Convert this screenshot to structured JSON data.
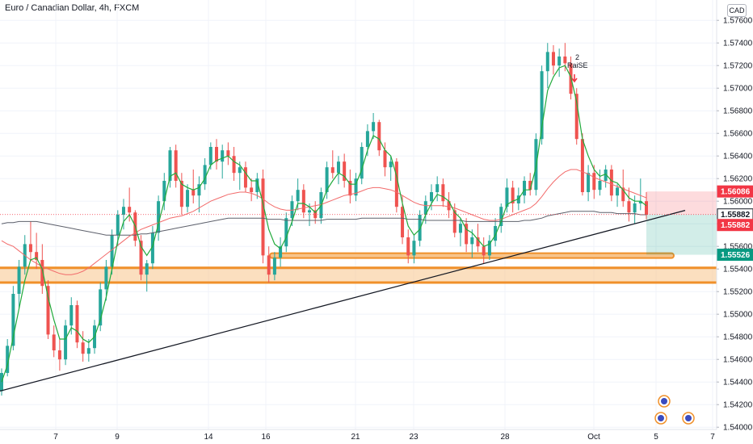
{
  "header": {
    "title": "Euro / Canadian Dollar, 4h, FXCM",
    "currency": "CAD"
  },
  "chart_data": {
    "type": "candlestick",
    "ylim": [
      1.5398,
      1.5778
    ],
    "y_ticks": [
      "1.54000",
      "1.54200",
      "1.54400",
      "1.54600",
      "1.54800",
      "1.55000",
      "1.55200",
      "1.55400",
      "1.55600",
      "1.55800",
      "1.56000",
      "1.56200",
      "1.56400",
      "1.56600",
      "1.56800",
      "1.57000",
      "1.57200",
      "1.57400",
      "1.57600"
    ],
    "x_ticks": [
      "7",
      "9",
      "14",
      "16",
      "21",
      "23",
      "28",
      "Oct",
      "5",
      "7"
    ],
    "price_labels": [
      {
        "value": "1.56086",
        "price": 1.56086,
        "color": "#f23645"
      },
      {
        "value": "1.55882",
        "price": 1.55882,
        "color": "#ffffff"
      },
      {
        "value": "1.55882",
        "price": 1.55882,
        "color": "#f23645"
      },
      {
        "value": "1.55526",
        "price": 1.55526,
        "color": "#089981"
      }
    ],
    "annotation": {
      "text_top": "2",
      "text_bottom": "RaiSE"
    },
    "colors": {
      "up": "#26a69a",
      "down": "#ef5350",
      "zone": "#f7c48b",
      "zone_edge": "#f0902a",
      "trend": "#131722",
      "ma_green": "#22ab3c",
      "ma_red": "#f26b6b",
      "ma_gray": "#5d606b"
    },
    "candles": [
      [
        1.5432,
        1.5452,
        1.5428,
        1.5448
      ],
      [
        1.5448,
        1.5478,
        1.5445,
        1.5472
      ],
      [
        1.5472,
        1.5525,
        1.5468,
        1.5518
      ],
      [
        1.5518,
        1.5548,
        1.5505,
        1.5542
      ],
      [
        1.5542,
        1.557,
        1.5535,
        1.5562
      ],
      [
        1.5562,
        1.5582,
        1.5548,
        1.5555
      ],
      [
        1.5555,
        1.5572,
        1.554,
        1.5548
      ],
      [
        1.5548,
        1.5562,
        1.5518,
        1.5525
      ],
      [
        1.5525,
        1.553,
        1.5478,
        1.5482
      ],
      [
        1.5482,
        1.549,
        1.5462,
        1.5468
      ],
      [
        1.5468,
        1.5478,
        1.545,
        1.546
      ],
      [
        1.546,
        1.5495,
        1.5455,
        1.549
      ],
      [
        1.549,
        1.5515,
        1.5482,
        1.5508
      ],
      [
        1.5508,
        1.5512,
        1.547,
        1.5475
      ],
      [
        1.5475,
        1.5485,
        1.5458,
        1.5465
      ],
      [
        1.5465,
        1.5478,
        1.5458,
        1.547
      ],
      [
        1.547,
        1.5495,
        1.5465,
        1.549
      ],
      [
        1.549,
        1.5528,
        1.5485,
        1.5522
      ],
      [
        1.5522,
        1.5548,
        1.5512,
        1.5542
      ],
      [
        1.5542,
        1.5575,
        1.5535,
        1.557
      ],
      [
        1.557,
        1.5592,
        1.556,
        1.5588
      ],
      [
        1.5588,
        1.5602,
        1.5575,
        1.5595
      ],
      [
        1.5595,
        1.5612,
        1.5582,
        1.559
      ],
      [
        1.559,
        1.5592,
        1.556,
        1.5565
      ],
      [
        1.5565,
        1.557,
        1.553,
        1.5535
      ],
      [
        1.5535,
        1.5548,
        1.552,
        1.5545
      ],
      [
        1.5545,
        1.5578,
        1.554,
        1.5572
      ],
      [
        1.5572,
        1.5605,
        1.5565,
        1.56
      ],
      [
        1.56,
        1.5625,
        1.5592,
        1.5618
      ],
      [
        1.5618,
        1.5648,
        1.5612,
        1.5645
      ],
      [
        1.5645,
        1.565,
        1.5612,
        1.5618
      ],
      [
        1.5618,
        1.5625,
        1.5588,
        1.5595
      ],
      [
        1.5595,
        1.5615,
        1.559,
        1.561
      ],
      [
        1.561,
        1.5628,
        1.5598,
        1.5605
      ],
      [
        1.5605,
        1.5622,
        1.559,
        1.5615
      ],
      [
        1.5615,
        1.5638,
        1.561,
        1.5632
      ],
      [
        1.5632,
        1.5652,
        1.5628,
        1.5648
      ],
      [
        1.5648,
        1.5655,
        1.5628,
        1.5635
      ],
      [
        1.5635,
        1.565,
        1.562,
        1.5645
      ],
      [
        1.5645,
        1.5652,
        1.5632,
        1.564
      ],
      [
        1.564,
        1.5648,
        1.5618,
        1.5625
      ],
      [
        1.5625,
        1.5635,
        1.561,
        1.563
      ],
      [
        1.563,
        1.5635,
        1.5608,
        1.5612
      ],
      [
        1.5612,
        1.562,
        1.56,
        1.5608
      ],
      [
        1.5608,
        1.5625,
        1.5602,
        1.562
      ],
      [
        1.562,
        1.5628,
        1.5545,
        1.5552
      ],
      [
        1.5552,
        1.556,
        1.5528,
        1.5535
      ],
      [
        1.5535,
        1.5555,
        1.553,
        1.555
      ],
      [
        1.555,
        1.5568,
        1.5542,
        1.556
      ],
      [
        1.556,
        1.559,
        1.5555,
        1.5585
      ],
      [
        1.5585,
        1.5605,
        1.5578,
        1.56
      ],
      [
        1.56,
        1.562,
        1.5592,
        1.561
      ],
      [
        1.561,
        1.5615,
        1.5585,
        1.559
      ],
      [
        1.559,
        1.5598,
        1.5578,
        1.5592
      ],
      [
        1.5592,
        1.56,
        1.558,
        1.5585
      ],
      [
        1.5585,
        1.5612,
        1.558,
        1.5608
      ],
      [
        1.5608,
        1.5635,
        1.5602,
        1.563
      ],
      [
        1.563,
        1.5645,
        1.562,
        1.5625
      ],
      [
        1.5625,
        1.564,
        1.5615,
        1.5635
      ],
      [
        1.5635,
        1.5642,
        1.5612,
        1.5618
      ],
      [
        1.5618,
        1.5628,
        1.5598,
        1.5605
      ],
      [
        1.5605,
        1.5625,
        1.56,
        1.562
      ],
      [
        1.562,
        1.5652,
        1.5615,
        1.5648
      ],
      [
        1.5648,
        1.5668,
        1.564,
        1.5662
      ],
      [
        1.5662,
        1.5678,
        1.5655,
        1.567
      ],
      [
        1.567,
        1.5672,
        1.564,
        1.5645
      ],
      [
        1.5645,
        1.5652,
        1.5622,
        1.563
      ],
      [
        1.563,
        1.564,
        1.5618,
        1.5635
      ],
      [
        1.5635,
        1.5638,
        1.559,
        1.5595
      ],
      [
        1.5595,
        1.5605,
        1.5562,
        1.5568
      ],
      [
        1.5568,
        1.5575,
        1.5545,
        1.5552
      ],
      [
        1.5552,
        1.557,
        1.5545,
        1.5565
      ],
      [
        1.5565,
        1.5592,
        1.556,
        1.5588
      ],
      [
        1.5588,
        1.5605,
        1.558,
        1.56
      ],
      [
        1.56,
        1.5615,
        1.5592,
        1.5608
      ],
      [
        1.5608,
        1.5622,
        1.56,
        1.5615
      ],
      [
        1.5615,
        1.562,
        1.5595,
        1.56
      ],
      [
        1.56,
        1.5608,
        1.5585,
        1.5592
      ],
      [
        1.5592,
        1.5598,
        1.5568,
        1.5572
      ],
      [
        1.5572,
        1.5585,
        1.556,
        1.558
      ],
      [
        1.558,
        1.5585,
        1.5555,
        1.5562
      ],
      [
        1.5562,
        1.5575,
        1.555,
        1.5568
      ],
      [
        1.5568,
        1.558,
        1.5555,
        1.556
      ],
      [
        1.556,
        1.5568,
        1.5545,
        1.5552
      ],
      [
        1.5552,
        1.557,
        1.5548,
        1.5565
      ],
      [
        1.5565,
        1.5585,
        1.556,
        1.5578
      ],
      [
        1.5578,
        1.5598,
        1.5572,
        1.5595
      ],
      [
        1.5595,
        1.562,
        1.559,
        1.5612
      ],
      [
        1.5612,
        1.5618,
        1.559,
        1.5598
      ],
      [
        1.5598,
        1.5612,
        1.5592,
        1.5605
      ],
      [
        1.5605,
        1.5622,
        1.5598,
        1.5618
      ],
      [
        1.5618,
        1.5625,
        1.5605,
        1.561
      ],
      [
        1.561,
        1.566,
        1.5605,
        1.5655
      ],
      [
        1.5655,
        1.572,
        1.565,
        1.5715
      ],
      [
        1.5715,
        1.574,
        1.57,
        1.5732
      ],
      [
        1.5732,
        1.5738,
        1.5712,
        1.572
      ],
      [
        1.572,
        1.5735,
        1.571,
        1.5728
      ],
      [
        1.5728,
        1.574,
        1.5715,
        1.5722
      ],
      [
        1.5722,
        1.5728,
        1.569,
        1.5695
      ],
      [
        1.5695,
        1.57,
        1.565,
        1.5655
      ],
      [
        1.5655,
        1.566,
        1.5605,
        1.5608
      ],
      [
        1.5608,
        1.5632,
        1.56,
        1.5625
      ],
      [
        1.5625,
        1.5632,
        1.5602,
        1.561
      ],
      [
        1.561,
        1.5628,
        1.5605,
        1.5618
      ],
      [
        1.5618,
        1.5632,
        1.5612,
        1.5628
      ],
      [
        1.5628,
        1.5632,
        1.56,
        1.5605
      ],
      [
        1.5605,
        1.5615,
        1.5595,
        1.5612
      ],
      [
        1.5612,
        1.5628,
        1.5595,
        1.56
      ],
      [
        1.56,
        1.5612,
        1.5582,
        1.559
      ],
      [
        1.559,
        1.5605,
        1.558,
        1.5598
      ],
      [
        1.5598,
        1.562,
        1.5592,
        1.56
      ],
      [
        1.56,
        1.5608,
        1.5584,
        1.5588
      ]
    ],
    "ma_fast": [
      1.544,
      1.5455,
      1.548,
      1.5505,
      1.553,
      1.5548,
      1.555,
      1.554,
      1.5515,
      1.5495,
      1.5478,
      1.5478,
      1.5488,
      1.5485,
      1.5478,
      1.5475,
      1.548,
      1.5495,
      1.5515,
      1.554,
      1.5565,
      1.5582,
      1.5588,
      1.5578,
      1.556,
      1.5552,
      1.556,
      1.558,
      1.56,
      1.5622,
      1.5625,
      1.5615,
      1.5612,
      1.561,
      1.5612,
      1.562,
      1.5632,
      1.5636,
      1.5638,
      1.564,
      1.5635,
      1.5632,
      1.5625,
      1.5618,
      1.5618,
      1.5598,
      1.5575,
      1.5562,
      1.5558,
      1.5568,
      1.5582,
      1.5598,
      1.5598,
      1.5595,
      1.559,
      1.5596,
      1.561,
      1.5618,
      1.5625,
      1.5622,
      1.5615,
      1.5615,
      1.5628,
      1.5645,
      1.5658,
      1.5655,
      1.5645,
      1.564,
      1.5622,
      1.5598,
      1.5578,
      1.557,
      1.5575,
      1.5588,
      1.5598,
      1.5606,
      1.5604,
      1.56,
      1.559,
      1.5585,
      1.5575,
      1.5572,
      1.5566,
      1.556,
      1.5562,
      1.557,
      1.5582,
      1.5597,
      1.56,
      1.5602,
      1.561,
      1.561,
      1.563,
      1.5665,
      1.5698,
      1.571,
      1.5718,
      1.572,
      1.571,
      1.5688,
      1.5655,
      1.564,
      1.5628,
      1.5622,
      1.5624,
      1.5618,
      1.5616,
      1.561,
      1.5603,
      1.56,
      1.56,
      1.5596
    ],
    "ma_slow": [
      1.5565,
      1.5562,
      1.556,
      1.5556,
      1.5552,
      1.5548,
      1.5545,
      1.5542,
      1.554,
      1.5538,
      1.5536,
      1.5535,
      1.5535,
      1.5536,
      1.5538,
      1.5541,
      1.5545,
      1.5549,
      1.5553,
      1.5557,
      1.5561,
      1.5565,
      1.5569,
      1.5572,
      1.5575,
      1.5577,
      1.5579,
      1.5581,
      1.5583,
      1.5585,
      1.5586,
      1.5587,
      1.5589,
      1.5591,
      1.5594,
      1.5597,
      1.56,
      1.5602,
      1.5604,
      1.5606,
      1.5607,
      1.5608,
      1.5608,
      1.5607,
      1.5605,
      1.5602,
      1.5598,
      1.5595,
      1.5593,
      1.5592,
      1.5592,
      1.5593,
      1.5594,
      1.5595,
      1.5596,
      1.5597,
      1.5599,
      1.5601,
      1.5603,
      1.5605,
      1.5606,
      1.5607,
      1.5609,
      1.5611,
      1.5612,
      1.5612,
      1.5611,
      1.561,
      1.5608,
      1.5605,
      1.5602,
      1.5599,
      1.5597,
      1.5596,
      1.5596,
      1.5596,
      1.5596,
      1.5595,
      1.5594,
      1.5592,
      1.559,
      1.5588,
      1.5586,
      1.5584,
      1.5583,
      1.5583,
      1.5584,
      1.5586,
      1.5588,
      1.559,
      1.5592,
      1.5594,
      1.5598,
      1.5604,
      1.5611,
      1.5617,
      1.5622,
      1.5626,
      1.5628,
      1.5628,
      1.5626,
      1.5624,
      1.5621,
      1.5619,
      1.5617,
      1.5615,
      1.5613,
      1.5611,
      1.5609,
      1.5607,
      1.5605,
      1.5603
    ],
    "ma_long": [
      1.558,
      1.5581,
      1.5581,
      1.5582,
      1.5582,
      1.5582,
      1.5582,
      1.5581,
      1.558,
      1.5579,
      1.5578,
      1.5577,
      1.5576,
      1.5575,
      1.5574,
      1.5573,
      1.5572,
      1.5571,
      1.557,
      1.557,
      1.557,
      1.557,
      1.557,
      1.557,
      1.5571,
      1.5571,
      1.5572,
      1.5573,
      1.5574,
      1.5575,
      1.5576,
      1.5577,
      1.5578,
      1.5579,
      1.558,
      1.5581,
      1.5582,
      1.5583,
      1.5584,
      1.5585,
      1.5585,
      1.5585,
      1.5585,
      1.5585,
      1.5585,
      1.5585,
      1.5584,
      1.5584,
      1.5584,
      1.5583,
      1.5583,
      1.5583,
      1.5583,
      1.5583,
      1.5583,
      1.5583,
      1.5584,
      1.5584,
      1.5584,
      1.5584,
      1.5584,
      1.5584,
      1.5585,
      1.5585,
      1.5585,
      1.5585,
      1.5585,
      1.5585,
      1.5585,
      1.5585,
      1.5584,
      1.5584,
      1.5584,
      1.5583,
      1.5583,
      1.5583,
      1.5583,
      1.5583,
      1.5583,
      1.5583,
      1.5582,
      1.5582,
      1.5582,
      1.5582,
      1.5582,
      1.5582,
      1.5582,
      1.5582,
      1.5582,
      1.5582,
      1.5583,
      1.5583,
      1.5584,
      1.5585,
      1.5587,
      1.5588,
      1.5589,
      1.559,
      1.5591,
      1.5591,
      1.5591,
      1.5591,
      1.5591,
      1.559,
      1.559,
      1.559,
      1.5589,
      1.5589,
      1.5589,
      1.5589,
      1.5588,
      1.5588
    ]
  }
}
